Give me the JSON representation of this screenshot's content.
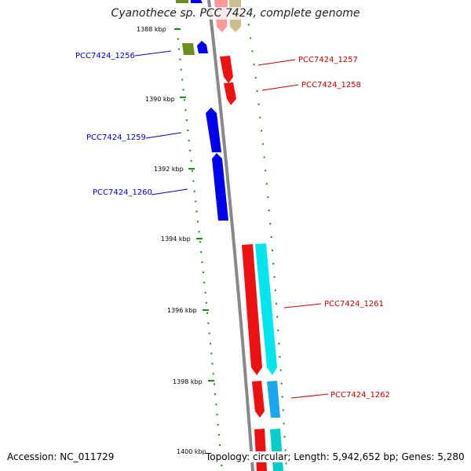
{
  "title": "Cyanothece sp. PCC 7424, complete genome",
  "accession": "Accession: NC_011729",
  "topology": "Topology: circular; Length: 5,942,652 bp; Genes: 5,280",
  "colors": {
    "forward_label": "#cc0000",
    "reverse_label": "#0000cc",
    "backbone": "#888888",
    "gc_dots": "#1a8a1a"
  },
  "ticks": [
    "1388 kbp",
    "1390 kbp",
    "1392 kbp",
    "1394 kbp",
    "1396 kbp",
    "1398 kbp",
    "1400 kbp"
  ],
  "genes": [
    {
      "label": "PCC7424_1256",
      "strand": "reverse"
    },
    {
      "label": "PCC7424_1257",
      "strand": "forward"
    },
    {
      "label": "PCC7424_1258",
      "strand": "forward"
    },
    {
      "label": "PCC7424_1259",
      "strand": "reverse"
    },
    {
      "label": "PCC7424_1260",
      "strand": "reverse"
    },
    {
      "label": "PCC7424_1261",
      "strand": "forward"
    },
    {
      "label": "PCC7424_1262",
      "strand": "forward"
    }
  ]
}
